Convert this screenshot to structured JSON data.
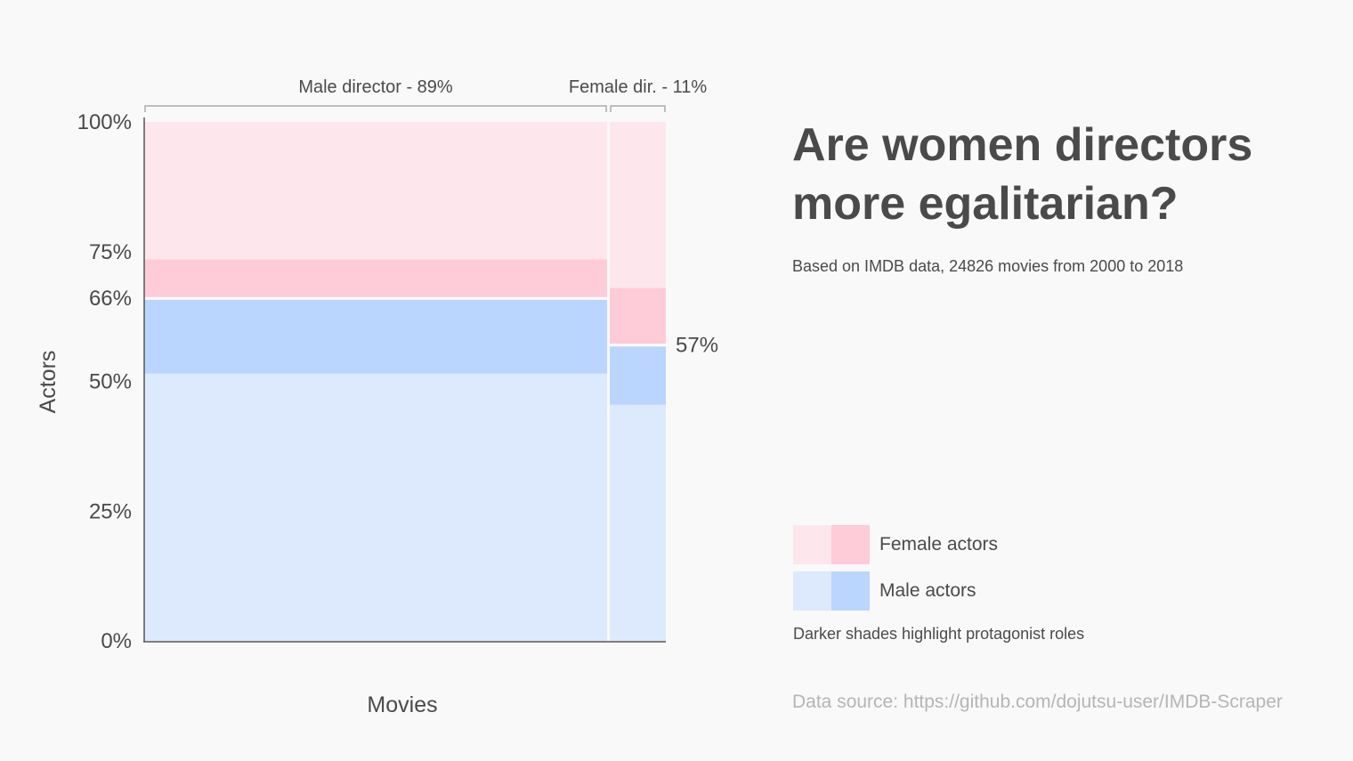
{
  "title": "Are women directors more egalitarian?",
  "subtitle": "Based on IMDB data, 24826 movies from 2000 to 2018",
  "chart_data": {
    "type": "mosaic",
    "xlabel": "Movies",
    "ylabel": "Actors",
    "ylim": [
      0,
      100
    ],
    "y_ticks": [
      "0%",
      "25%",
      "50%",
      "66%",
      "75%",
      "100%"
    ],
    "y_tick_values": [
      0,
      25,
      50,
      66,
      75,
      100
    ],
    "columns": [
      {
        "label": "Male director - 89%",
        "share": 89,
        "male_other": 51.5,
        "male_protagonist": 14.5,
        "female_protagonist": 7.5,
        "female_other": 26.5
      },
      {
        "label": "Female dir. - 11%",
        "share": 11,
        "male_other": 45.5,
        "male_protagonist": 11.5,
        "female_protagonist": 11,
        "female_other": 32,
        "annotation": "57%"
      }
    ],
    "colors": {
      "female_light": "#fde6ec",
      "female_dark": "#fecbd8",
      "male_light": "#dde9fd",
      "male_dark": "#bad6fe"
    }
  },
  "legend": {
    "female": "Female actors",
    "male": "Male actors",
    "note": "Darker shades highlight protagonist roles"
  },
  "source": "Data source: https://github.com/dojutsu-user/IMDB-Scraper"
}
